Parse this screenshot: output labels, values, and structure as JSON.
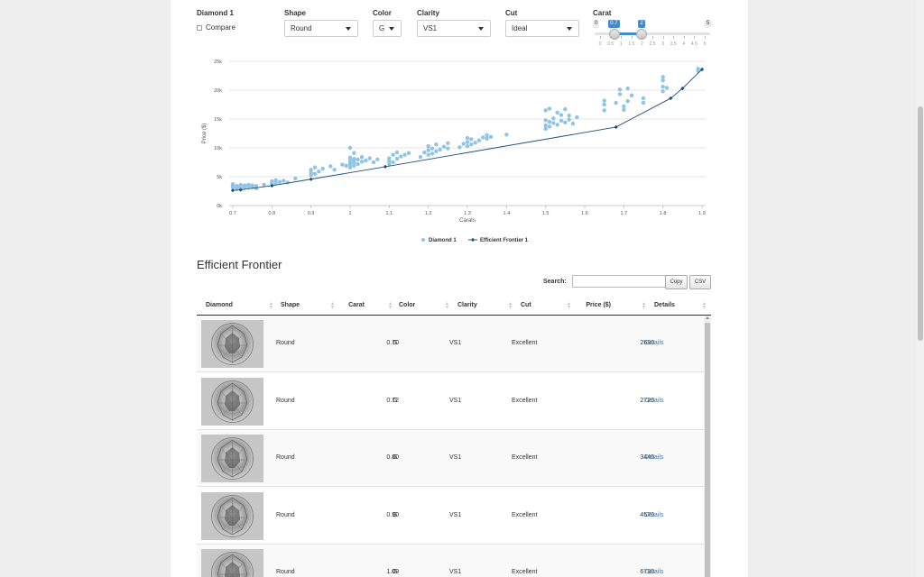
{
  "controls": {
    "diamond_label": "Diamond 1",
    "compare_label": "Compare",
    "shape": {
      "label": "Shape",
      "value": "Round"
    },
    "color": {
      "label": "Color",
      "value": "G"
    },
    "clarity": {
      "label": "Clarity",
      "value": "VS1"
    },
    "cut": {
      "label": "Cut",
      "value": "Ideal"
    },
    "carat": {
      "label": "Carat",
      "min_label": "0",
      "max_label": "5",
      "from_label": "0.7",
      "to_label": "2",
      "min": 0,
      "max": 5,
      "from": 0.7,
      "to": 2,
      "grid": [
        "0",
        "0.5",
        "1",
        "1.5",
        "2",
        "2.5",
        "3",
        "3.5",
        "4",
        "4.5",
        "5"
      ]
    }
  },
  "chart_data": {
    "type": "scatter",
    "xlabel": "Carats",
    "ylabel": "Price ($)",
    "xlim": [
      0.7,
      1.9
    ],
    "ylim": [
      0,
      25000
    ],
    "x_ticks": [
      "0.7",
      "0.8",
      "0.9",
      "1",
      "1.1",
      "1.2",
      "1.3",
      "1.4",
      "1.5",
      "1.6",
      "1.7",
      "1.8",
      "1.9"
    ],
    "y_ticks": [
      "0k",
      "5k",
      "10k",
      "15k",
      "20k",
      "25k"
    ],
    "legend_position": "bottom",
    "grid": true,
    "series": [
      {
        "name": "Diamond 1",
        "kind": "scatter",
        "color": "#8fc4e3",
        "points": [
          [
            0.7,
            3200
          ],
          [
            0.7,
            3500
          ],
          [
            0.7,
            3700
          ],
          [
            0.71,
            2900
          ],
          [
            0.71,
            3100
          ],
          [
            0.71,
            3400
          ],
          [
            0.72,
            3000
          ],
          [
            0.72,
            3300
          ],
          [
            0.72,
            3600
          ],
          [
            0.73,
            3100
          ],
          [
            0.73,
            3500
          ],
          [
            0.74,
            3300
          ],
          [
            0.74,
            3600
          ],
          [
            0.75,
            3200
          ],
          [
            0.75,
            3500
          ],
          [
            0.76,
            3000
          ],
          [
            0.76,
            3400
          ],
          [
            0.78,
            3600
          ],
          [
            0.8,
            3800
          ],
          [
            0.8,
            4200
          ],
          [
            0.81,
            3900
          ],
          [
            0.81,
            4400
          ],
          [
            0.82,
            4100
          ],
          [
            0.83,
            4300
          ],
          [
            0.84,
            4000
          ],
          [
            0.86,
            4700
          ],
          [
            0.9,
            5300
          ],
          [
            0.9,
            5700
          ],
          [
            0.9,
            6200
          ],
          [
            0.91,
            5500
          ],
          [
            0.91,
            6600
          ],
          [
            0.92,
            5900
          ],
          [
            0.93,
            6400
          ],
          [
            0.95,
            6800
          ],
          [
            0.96,
            6200
          ],
          [
            0.98,
            7100
          ],
          [
            0.99,
            6900
          ],
          [
            1.0,
            6600
          ],
          [
            1.0,
            7100
          ],
          [
            1.0,
            7500
          ],
          [
            1.0,
            7900
          ],
          [
            1.0,
            8300
          ],
          [
            1.0,
            10000
          ],
          [
            1.01,
            6900
          ],
          [
            1.01,
            7400
          ],
          [
            1.01,
            7800
          ],
          [
            1.01,
            8100
          ],
          [
            1.01,
            9100
          ],
          [
            1.02,
            7200
          ],
          [
            1.02,
            8000
          ],
          [
            1.03,
            7600
          ],
          [
            1.03,
            8400
          ],
          [
            1.04,
            7800
          ],
          [
            1.05,
            8200
          ],
          [
            1.06,
            7500
          ],
          [
            1.07,
            8000
          ],
          [
            1.1,
            7200
          ],
          [
            1.1,
            7700
          ],
          [
            1.1,
            8200
          ],
          [
            1.11,
            7500
          ],
          [
            1.11,
            8800
          ],
          [
            1.12,
            8100
          ],
          [
            1.12,
            9200
          ],
          [
            1.13,
            8500
          ],
          [
            1.14,
            8800
          ],
          [
            1.15,
            9100
          ],
          [
            1.18,
            8400
          ],
          [
            1.19,
            9200
          ],
          [
            1.2,
            8800
          ],
          [
            1.2,
            9600
          ],
          [
            1.2,
            10300
          ],
          [
            1.21,
            9000
          ],
          [
            1.21,
            9900
          ],
          [
            1.22,
            9400
          ],
          [
            1.22,
            10600
          ],
          [
            1.23,
            9700
          ],
          [
            1.24,
            10200
          ],
          [
            1.25,
            9900
          ],
          [
            1.25,
            10800
          ],
          [
            1.28,
            10100
          ],
          [
            1.29,
            10700
          ],
          [
            1.3,
            10300
          ],
          [
            1.3,
            11000
          ],
          [
            1.3,
            11700
          ],
          [
            1.31,
            10600
          ],
          [
            1.31,
            11500
          ],
          [
            1.32,
            10900
          ],
          [
            1.33,
            11300
          ],
          [
            1.34,
            11800
          ],
          [
            1.35,
            11600
          ],
          [
            1.35,
            12200
          ],
          [
            1.36,
            11900
          ],
          [
            1.4,
            12300
          ],
          [
            1.5,
            13300
          ],
          [
            1.5,
            13900
          ],
          [
            1.5,
            14800
          ],
          [
            1.5,
            16500
          ],
          [
            1.51,
            13700
          ],
          [
            1.51,
            14500
          ],
          [
            1.51,
            16800
          ],
          [
            1.52,
            14300
          ],
          [
            1.52,
            15100
          ],
          [
            1.53,
            14000
          ],
          [
            1.53,
            16100
          ],
          [
            1.54,
            14700
          ],
          [
            1.54,
            15700
          ],
          [
            1.55,
            14400
          ],
          [
            1.55,
            16700
          ],
          [
            1.56,
            14900
          ],
          [
            1.56,
            15600
          ],
          [
            1.57,
            14200
          ],
          [
            1.58,
            15300
          ],
          [
            1.65,
            16500
          ],
          [
            1.65,
            17500
          ],
          [
            1.65,
            18200
          ],
          [
            1.68,
            17800
          ],
          [
            1.69,
            19300
          ],
          [
            1.69,
            20100
          ],
          [
            1.7,
            16600
          ],
          [
            1.7,
            17200
          ],
          [
            1.71,
            18100
          ],
          [
            1.71,
            20300
          ],
          [
            1.72,
            19100
          ],
          [
            1.75,
            17800
          ],
          [
            1.75,
            18600
          ],
          [
            1.8,
            19800
          ],
          [
            1.8,
            20600
          ],
          [
            1.8,
            21700
          ],
          [
            1.8,
            22300
          ],
          [
            1.81,
            20400
          ],
          [
            1.89,
            23300
          ],
          [
            1.89,
            23700
          ]
        ]
      },
      {
        "name": "Efficient Frontier 1",
        "kind": "line",
        "color": "#1f4e79",
        "points": [
          [
            0.7,
            2630
          ],
          [
            0.72,
            2720
          ],
          [
            0.8,
            3440
          ],
          [
            0.9,
            4570
          ],
          [
            1.09,
            6730
          ],
          [
            1.68,
            13600
          ],
          [
            1.82,
            18600
          ],
          [
            1.85,
            20300
          ],
          [
            1.9,
            23600
          ]
        ]
      }
    ]
  },
  "section": {
    "title": "Efficient Frontier"
  },
  "search": {
    "label": "Search:",
    "placeholder": ""
  },
  "buttons": {
    "copy": "Copy",
    "csv": "CSV"
  },
  "table": {
    "columns": [
      "Diamond",
      "Shape",
      "Carat",
      "Color",
      "Clarity",
      "Cut",
      "Price ($)",
      "Details"
    ],
    "rows": [
      {
        "shape": "Round",
        "carat": "0.70",
        "color": "G",
        "clarity": "VS1",
        "cut": "Excellent",
        "price": "2630",
        "details": "Details"
      },
      {
        "shape": "Round",
        "carat": "0.72",
        "color": "G",
        "clarity": "VS1",
        "cut": "Excellent",
        "price": "2720",
        "details": "Details"
      },
      {
        "shape": "Round",
        "carat": "0.80",
        "color": "G",
        "clarity": "VS1",
        "cut": "Excellent",
        "price": "3440",
        "details": "Details"
      },
      {
        "shape": "Round",
        "carat": "0.90",
        "color": "G",
        "clarity": "VS1",
        "cut": "Excellent",
        "price": "4570",
        "details": "Details"
      },
      {
        "shape": "Round",
        "carat": "1.09",
        "color": "G",
        "clarity": "VS1",
        "cut": "Excellent",
        "price": "6730",
        "details": "Details"
      }
    ]
  }
}
